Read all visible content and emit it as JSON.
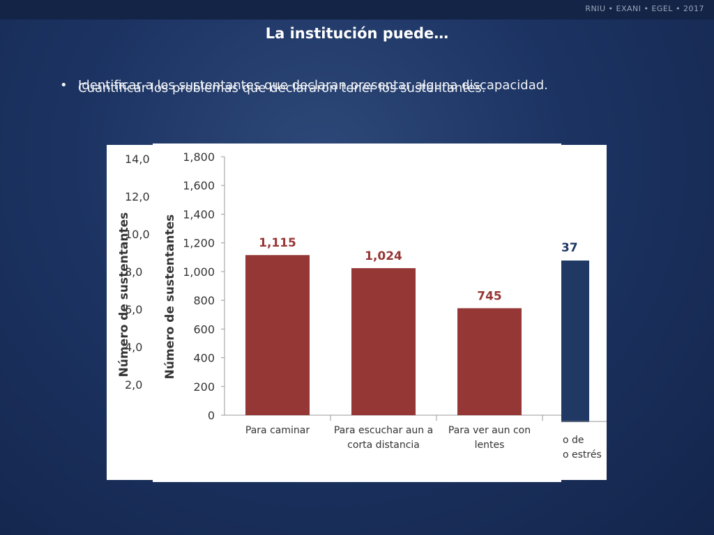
{
  "brand": "RNIU • EXANI • EGEL • 2017",
  "title": "La institución puede…",
  "bullets": [
    "Identificar a los sustentantes que declaran presentar alguna discapacidad.",
    "Cuantificar los problemas que declararon tener los sustentantes."
  ],
  "colors": {
    "red_bar": "#953735",
    "blue_bar": "#1f3864",
    "background": "#1c3362"
  },
  "back_chart": {
    "ylabel": "Número de sustentantes",
    "tick_labels": [
      "14,0",
      "12,0",
      "10,0",
      "8,0",
      "6,0",
      "4,0",
      "2,0"
    ],
    "value_label": "37",
    "category_lines": [
      "o de",
      "o estrés"
    ]
  },
  "chart_data": {
    "type": "bar",
    "title": "",
    "xlabel": "",
    "ylabel": "Número de sustentantes",
    "ylim": [
      0,
      1800
    ],
    "yticks": [
      0,
      200,
      400,
      600,
      800,
      1000,
      1200,
      1400,
      1600,
      1800
    ],
    "ytick_labels": [
      "0",
      "200",
      "400",
      "600",
      "800",
      "1,000",
      "1,200",
      "1,400",
      "1,600",
      "1,800"
    ],
    "categories": [
      [
        "Para caminar"
      ],
      [
        "Para escuchar aun a",
        "corta distancia"
      ],
      [
        "Para ver aun con",
        "lentes"
      ]
    ],
    "values": [
      1115,
      1024,
      745
    ],
    "value_labels": [
      "1,115",
      "1,024",
      "745"
    ],
    "grid": false
  }
}
